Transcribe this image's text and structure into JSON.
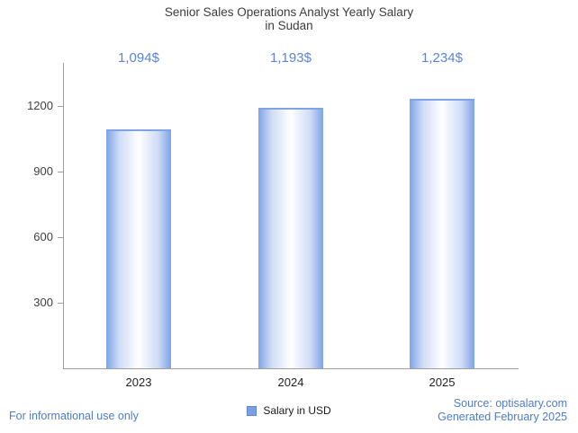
{
  "title": {
    "line1": "Senior Sales Operations Analyst Yearly Salary",
    "line2": "in Sudan"
  },
  "legend": {
    "label": "Salary in USD",
    "color": "#7aa0e4"
  },
  "footer": {
    "disclaimer": "For informational use only",
    "source": "Source: optisalary.com",
    "generated": "Generated February 2025"
  },
  "chart_data": {
    "type": "bar",
    "title": "Senior Sales Operations Analyst Yearly Salary in Sudan",
    "categories": [
      "2023",
      "2024",
      "2025"
    ],
    "series": [
      {
        "name": "Salary in USD",
        "values": [
          1094,
          1193,
          1234
        ],
        "value_labels": [
          "1,094$",
          "1,193$",
          "1,234$"
        ]
      }
    ],
    "values": [
      1094,
      1193,
      1234
    ],
    "value_labels": [
      "1,094$",
      "1,193$",
      "1,234$"
    ],
    "xlabel": "",
    "ylabel": "",
    "ylim": [
      0,
      1400
    ],
    "yticks": [
      300,
      600,
      900,
      1200
    ],
    "grid": "off",
    "legend_position": "bottom",
    "bar_color_edge": "#7ea3e6",
    "bar_color_mid": "#cfdcf6",
    "bar_color_center": "#ffffff",
    "label_color": "#5b84d6",
    "axis_color": "#9e9e9e",
    "tick_label_color": "#404040"
  }
}
